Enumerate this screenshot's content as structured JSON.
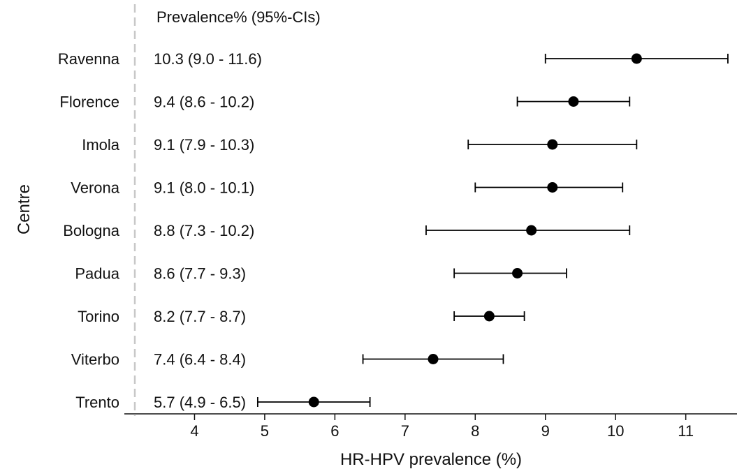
{
  "chart_data": {
    "type": "forest",
    "table_header": "Prevalence% (95%-CIs)",
    "ylabel": "Centre",
    "xlabel": "HR-HPV prevalence (%)",
    "xlim": [
      3.0,
      11.73
    ],
    "xticks": [
      4,
      5,
      6,
      7,
      8,
      9,
      10,
      11
    ],
    "grid": false,
    "rows": [
      {
        "centre": "Ravenna",
        "ci_text": "10.3 (9.0 - 11.6)",
        "estimate": 10.3,
        "lower": 9.0,
        "upper": 11.6
      },
      {
        "centre": "Florence",
        "ci_text": "9.4 (8.6 - 10.2)",
        "estimate": 9.4,
        "lower": 8.6,
        "upper": 10.2
      },
      {
        "centre": "Imola",
        "ci_text": "9.1 (7.9 - 10.3)",
        "estimate": 9.1,
        "lower": 7.9,
        "upper": 10.3
      },
      {
        "centre": "Verona",
        "ci_text": "9.1 (8.0 - 10.1)",
        "estimate": 9.1,
        "lower": 8.0,
        "upper": 10.1
      },
      {
        "centre": "Bologna",
        "ci_text": "8.8 (7.3 - 10.2)",
        "estimate": 8.8,
        "lower": 7.3,
        "upper": 10.2
      },
      {
        "centre": "Padua",
        "ci_text": "8.6 (7.7 - 9.3)",
        "estimate": 8.6,
        "lower": 7.7,
        "upper": 9.3
      },
      {
        "centre": "Torino",
        "ci_text": "8.2 (7.7 - 8.7)",
        "estimate": 8.2,
        "lower": 7.7,
        "upper": 8.7
      },
      {
        "centre": "Viterbo",
        "ci_text": "7.4 (6.4 - 8.4)",
        "estimate": 7.4,
        "lower": 6.4,
        "upper": 8.4
      },
      {
        "centre": "Trento",
        "ci_text": "5.7 (4.9 - 6.5)",
        "estimate": 5.7,
        "lower": 4.9,
        "upper": 6.5
      }
    ],
    "colors": {
      "marker": "#000000",
      "axis": "#111111",
      "separator": "#c8c8c8"
    }
  }
}
